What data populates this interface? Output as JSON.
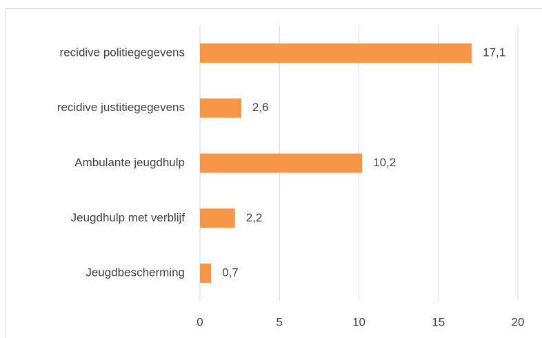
{
  "chart_data": {
    "type": "bar",
    "orientation": "horizontal",
    "categories": [
      "recidive politiegegevens",
      "recidive justitiegegevens",
      "Ambulante jeugdhulp",
      "Jeugdhulp met verblijf",
      "Jeugdbescherming"
    ],
    "values": [
      17.1,
      2.6,
      10.2,
      2.2,
      0.7
    ],
    "value_labels": [
      "17,1",
      "2,6",
      "10,2",
      "2,2",
      "0,7"
    ],
    "color": "#f79646",
    "xlim": [
      0,
      20
    ],
    "xticks": [
      0,
      5,
      10,
      15,
      20
    ],
    "grid": true
  }
}
